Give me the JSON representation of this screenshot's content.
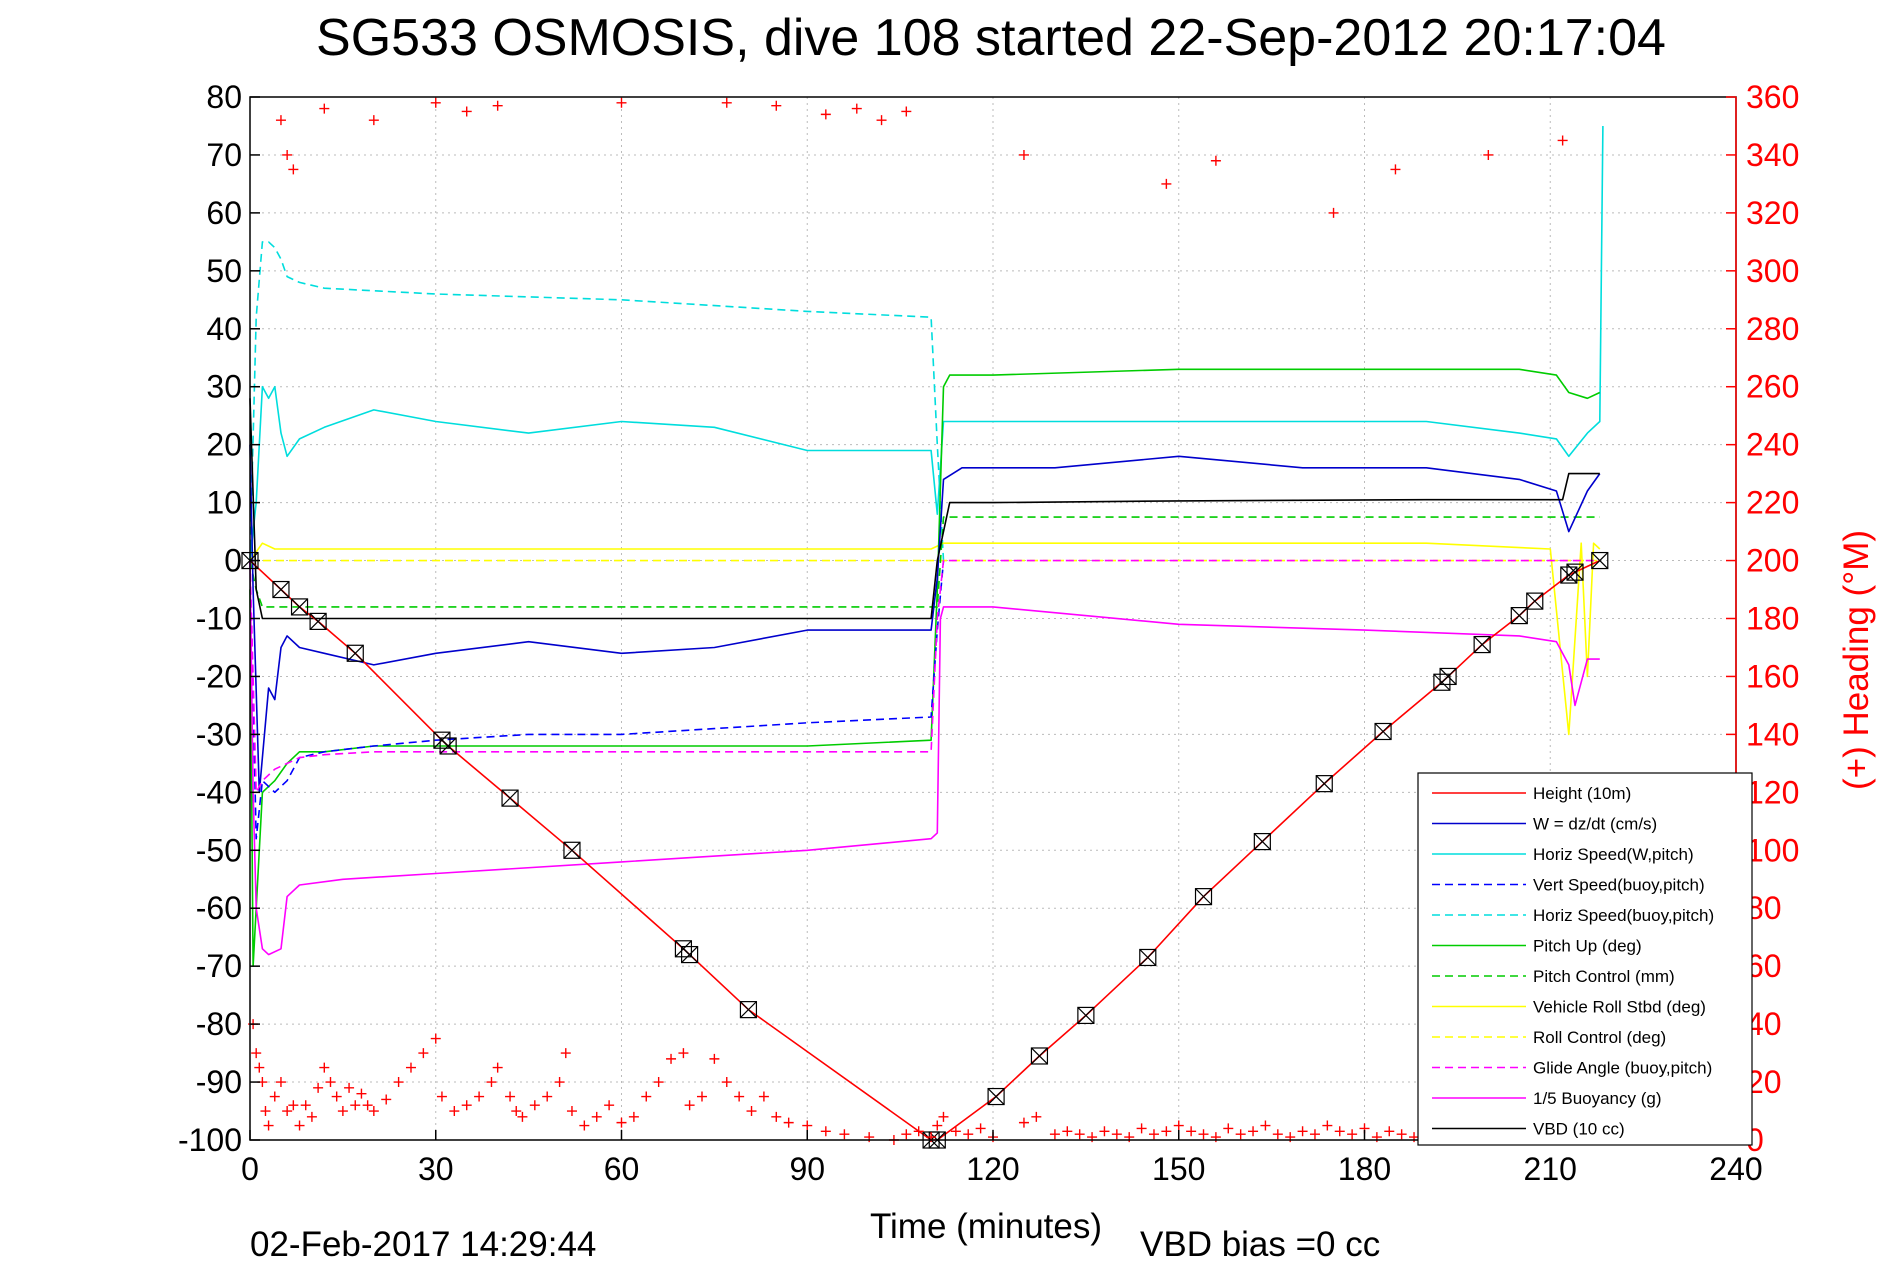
{
  "chart_data": {
    "type": "line",
    "title": "SG533 OSMOSIS, dive 108 started 22-Sep-2012 20:17:04",
    "xlabel": "Time (minutes)",
    "y2label": "(+) Heading (°M)",
    "footer_left": "02-Feb-2017 14:29:44",
    "footer_right": "VBD bias =0 cc",
    "xlim": [
      0,
      240
    ],
    "ylim": [
      -100,
      80
    ],
    "y2lim": [
      0,
      360
    ],
    "xticks": [
      0,
      30,
      60,
      90,
      120,
      150,
      180,
      210,
      240
    ],
    "yticks": [
      -100,
      -90,
      -80,
      -70,
      -60,
      -50,
      -40,
      -30,
      -20,
      -10,
      0,
      10,
      20,
      30,
      40,
      50,
      60,
      70,
      80
    ],
    "y2ticks": [
      0,
      20,
      40,
      60,
      80,
      100,
      120,
      140,
      160,
      180,
      200,
      220,
      240,
      260,
      280,
      300,
      320,
      340,
      360
    ],
    "grid": true,
    "legend_position": "bottom-right",
    "series": [
      {
        "name": "Height (10m)",
        "color": "#ff0000",
        "style": "solid",
        "markers": "square-x",
        "x": [
          0,
          5,
          8,
          11,
          17,
          31,
          32,
          42,
          52,
          70,
          71,
          80.5,
          110,
          111,
          120.5,
          127.5,
          135,
          145,
          154,
          163.5,
          173.5,
          183,
          192.5,
          193.5,
          199,
          205,
          207.5,
          213,
          214,
          218
        ],
        "y": [
          0,
          -5,
          -8,
          -10.5,
          -16,
          -31,
          -32,
          -41,
          -50,
          -67,
          -68,
          -77.5,
          -100,
          -100,
          -92.5,
          -85.5,
          -78.5,
          -68.5,
          -58,
          -48.5,
          -38.5,
          -29.5,
          -21,
          -20,
          -14.5,
          -9.5,
          -7,
          -2.5,
          -2,
          0
        ]
      },
      {
        "name": "W = dz/dt (cm/s)",
        "color": "#0000cc",
        "style": "solid",
        "x": [
          0,
          0.5,
          1.5,
          3,
          4,
          5,
          6,
          8,
          12,
          20,
          30,
          45,
          60,
          75,
          90,
          110,
          111,
          112,
          115,
          130,
          150,
          170,
          190,
          205,
          211,
          213,
          216,
          218
        ],
        "y": [
          20,
          -5,
          -40,
          -22,
          -24,
          -15,
          -13,
          -15,
          -16,
          -18,
          -16,
          -14,
          -16,
          -15,
          -12,
          -12,
          -3,
          14,
          16,
          16,
          18,
          16,
          16,
          14,
          12,
          5,
          12,
          15
        ]
      },
      {
        "name": "Horiz Speed(W,pitch)",
        "color": "#00dddd",
        "style": "solid",
        "x": [
          0,
          1,
          2,
          3,
          4,
          5,
          6,
          8,
          12,
          20,
          30,
          45,
          60,
          75,
          90,
          110,
          111,
          112,
          115,
          130,
          150,
          170,
          190,
          205,
          211,
          213,
          216,
          218,
          218.5
        ],
        "y": [
          0,
          10,
          30,
          28,
          30,
          22,
          18,
          21,
          23,
          26,
          24,
          22,
          24,
          23,
          19,
          19,
          8,
          24,
          24,
          24,
          24,
          24,
          24,
          22,
          21,
          18,
          22,
          24,
          75
        ]
      },
      {
        "name": "Vert Speed(buoy,pitch)",
        "color": "#0000ff",
        "style": "dashed",
        "x": [
          0,
          1,
          2,
          4,
          6,
          8,
          12,
          20,
          30,
          45,
          60,
          75,
          90,
          110,
          111,
          112
        ],
        "y": [
          0,
          -48,
          -38,
          -40,
          -38,
          -34,
          -33,
          -32,
          -31,
          -30,
          -30,
          -29,
          -28,
          -27,
          -12,
          0
        ]
      },
      {
        "name": "Horiz Speed(buoy,pitch)",
        "color": "#00dddd",
        "style": "dashed",
        "x": [
          0,
          1,
          2,
          3,
          4,
          5,
          6,
          8,
          12,
          30,
          60,
          90,
          110,
          111,
          112
        ],
        "y": [
          0,
          42,
          55,
          55,
          54,
          52,
          49,
          48,
          47,
          46,
          45,
          43,
          42,
          20,
          0
        ]
      },
      {
        "name": "Pitch Up (deg)",
        "color": "#00cc00",
        "style": "solid",
        "x": [
          0,
          0.5,
          1,
          2,
          4,
          6,
          8,
          12,
          20,
          30,
          45,
          60,
          75,
          90,
          110,
          111,
          112,
          113,
          120,
          150,
          180,
          205,
          211,
          213,
          216,
          218
        ],
        "y": [
          -5,
          -70,
          -60,
          -40,
          -38,
          -35,
          -33,
          -33,
          -32,
          -32,
          -32,
          -32,
          -32,
          -32,
          -31,
          -5,
          30,
          32,
          32,
          33,
          33,
          33,
          32,
          29,
          28,
          29
        ]
      },
      {
        "name": "Pitch Control (mm)",
        "color": "#00cc00",
        "style": "dashed",
        "x": [
          0,
          1,
          2,
          110,
          111,
          112,
          218
        ],
        "y": [
          0,
          -5,
          -8,
          -8,
          -8,
          7.5,
          7.5
        ]
      },
      {
        "name": "Vehicle Roll Stbd (deg)",
        "color": "#ffff00",
        "style": "solid",
        "x": [
          0,
          2,
          4,
          10,
          30,
          60,
          90,
          110,
          112,
          130,
          160,
          190,
          210,
          213,
          215,
          216,
          217,
          218
        ],
        "y": [
          0,
          3,
          2,
          2,
          2,
          2,
          2,
          2,
          3,
          3,
          3,
          3,
          2,
          -30,
          3,
          -20,
          3,
          2
        ]
      },
      {
        "name": "Roll Control (deg)",
        "color": "#ffff00",
        "style": "dashed",
        "x": [
          0,
          110,
          112,
          218
        ],
        "y": [
          0,
          0,
          0,
          0
        ]
      },
      {
        "name": "Glide Angle (buoy,pitch)",
        "color": "#ff00ff",
        "style": "dashed",
        "x": [
          0,
          1,
          2,
          4,
          8,
          12,
          20,
          30,
          60,
          90,
          110,
          111,
          112,
          218
        ],
        "y": [
          0,
          -40,
          -38,
          -36,
          -34,
          -33.5,
          -33,
          -33,
          -33,
          -33,
          -33,
          -10,
          0,
          0
        ]
      },
      {
        "name": "1/5 Buoyancy (g)",
        "color": "#ff00ff",
        "style": "solid",
        "x": [
          0,
          0.5,
          1,
          2,
          3,
          5,
          6,
          8,
          15,
          30,
          60,
          90,
          110,
          111,
          111.5,
          112,
          115,
          120,
          150,
          180,
          205,
          211,
          213,
          214,
          216,
          218
        ],
        "y": [
          0,
          -40,
          -60,
          -67,
          -68,
          -67,
          -58,
          -56,
          -55,
          -54,
          -52,
          -50,
          -48,
          -47,
          -10,
          -8,
          -8,
          -8,
          -11,
          -12,
          -13,
          -14,
          -18,
          -25,
          -17,
          -17
        ]
      },
      {
        "name": "VBD (10 cc)",
        "color": "#000000",
        "style": "solid",
        "x": [
          0,
          1,
          2,
          109,
          110,
          111,
          113,
          120,
          150,
          190,
          200,
          210,
          212,
          213,
          218
        ],
        "y": [
          28,
          -5,
          -10,
          -10,
          -10,
          0,
          10,
          10,
          10.3,
          10.5,
          10.5,
          10.5,
          10.5,
          15,
          15
        ]
      }
    ],
    "heading_points": {
      "name": "(+) Heading (°M)",
      "color": "#ff0000",
      "marker": "+",
      "axis": "right",
      "x": [
        0.5,
        1,
        1.5,
        2,
        2.5,
        3,
        4,
        5,
        6,
        7,
        8,
        9,
        10,
        11,
        12,
        13,
        14,
        15,
        16,
        17,
        18,
        19,
        20,
        22,
        24,
        26,
        28,
        30,
        31,
        33,
        35,
        37,
        39,
        40,
        42,
        43,
        44,
        46,
        48,
        50,
        51,
        52,
        54,
        56,
        58,
        60,
        62,
        64,
        66,
        68,
        70,
        71,
        73,
        75,
        77,
        79,
        81,
        83,
        85,
        87,
        90,
        93,
        96,
        100,
        104,
        106,
        108,
        110,
        111,
        112,
        114,
        116,
        118,
        120,
        125,
        127,
        130,
        132,
        134,
        136,
        138,
        140,
        142,
        144,
        146,
        148,
        150,
        152,
        154,
        156,
        158,
        160,
        162,
        164,
        166,
        168,
        170,
        172,
        174,
        176,
        178,
        180,
        182,
        184,
        186,
        188,
        190,
        192,
        194,
        196,
        198,
        200,
        202,
        204,
        206,
        208,
        210,
        212,
        214,
        216,
        218,
        5,
        6,
        7,
        12,
        20,
        30,
        35,
        40,
        60,
        77,
        85,
        93,
        98,
        102,
        106,
        125,
        148,
        156,
        175,
        185,
        200,
        212
      ],
      "y": [
        40,
        30,
        25,
        20,
        10,
        5,
        15,
        20,
        10,
        12,
        5,
        12,
        8,
        18,
        25,
        20,
        15,
        10,
        18,
        12,
        16,
        12,
        10,
        14,
        20,
        25,
        30,
        35,
        15,
        10,
        12,
        15,
        20,
        25,
        15,
        10,
        8,
        12,
        15,
        20,
        30,
        10,
        5,
        8,
        12,
        6,
        8,
        15,
        20,
        28,
        30,
        12,
        15,
        28,
        20,
        15,
        10,
        15,
        8,
        6,
        5,
        3,
        2,
        1,
        0,
        2,
        3,
        1,
        5,
        8,
        3,
        2,
        4,
        1,
        6,
        8,
        2,
        3,
        2,
        1,
        3,
        2,
        1,
        4,
        2,
        3,
        5,
        3,
        2,
        1,
        4,
        2,
        3,
        5,
        2,
        1,
        3,
        2,
        5,
        3,
        2,
        4,
        1,
        3,
        2,
        1,
        3,
        5,
        2,
        1,
        3,
        2,
        4,
        5,
        3,
        2,
        4,
        6,
        3,
        2,
        5,
        352,
        340,
        335,
        356,
        352,
        358,
        355,
        357,
        358,
        358,
        357,
        354,
        356,
        352,
        355,
        340,
        330,
        338,
        320,
        335,
        340,
        345
      ]
    },
    "legend_entries": [
      "Height (10m)",
      "W = dz/dt (cm/s)",
      "Horiz Speed(W,pitch)",
      "Vert Speed(buoy,pitch)",
      "Horiz Speed(buoy,pitch)",
      "Pitch Up (deg)",
      "Pitch Control (mm)",
      "Vehicle Roll Stbd (deg)",
      "Roll Control (deg)",
      "Glide Angle (buoy,pitch)",
      "1/5 Buoyancy (g)",
      "VBD (10 cc)"
    ]
  }
}
